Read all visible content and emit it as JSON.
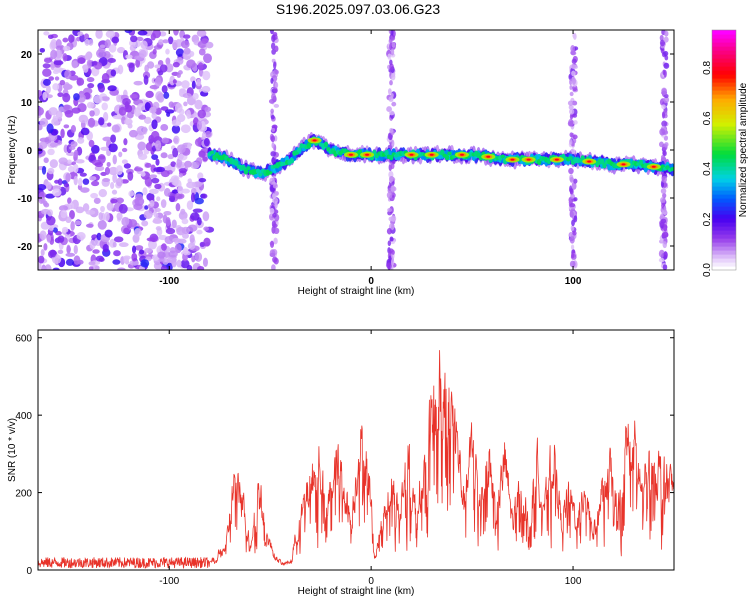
{
  "title": "S196.2025.097.03.06.G23",
  "chart_data": [
    {
      "type": "heatmap",
      "xlabel": "Height of straight line (km)",
      "ylabel": "Frequency (Hz)",
      "xlim": [
        -165,
        150
      ],
      "ylim": [
        -25,
        25
      ],
      "x_ticks": [
        -100,
        0,
        100
      ],
      "y_ticks": [
        -20,
        -10,
        0,
        10,
        20
      ],
      "colorbar": {
        "label": "Normalized spectral amplitude",
        "ticks": [
          0.0,
          0.2,
          0.4,
          0.6,
          0.8
        ],
        "range": [
          0,
          0.95
        ]
      },
      "ridge": {
        "x": [
          -78,
          -70,
          -62,
          -55,
          -48,
          -40,
          -33,
          -28,
          -20,
          -10,
          0,
          10,
          20,
          30,
          40,
          50,
          60,
          70,
          80,
          90,
          100,
          110,
          120,
          130,
          140,
          150
        ],
        "y": [
          -1,
          -2,
          -4,
          -5,
          -4,
          -2,
          1,
          2,
          0,
          -1,
          -1,
          -1,
          -1,
          -1,
          -1,
          -1,
          -1.5,
          -2,
          -2,
          -2,
          -2,
          -2.5,
          -3,
          -3,
          -3.5,
          -4
        ]
      }
    },
    {
      "type": "line",
      "xlabel": "Height of straight line (km)",
      "ylabel": "SNR (10 * v/v)",
      "xlim": [
        -165,
        150
      ],
      "ylim": [
        0,
        620
      ],
      "x_ticks": [
        -100,
        0,
        100
      ],
      "y_ticks": [
        0,
        200,
        400,
        600
      ],
      "color": "#e8332a",
      "envelope": {
        "x": [
          -165,
          -80,
          -72,
          -68,
          -64,
          -60,
          -56,
          -52,
          -48,
          -44,
          -40,
          -35,
          -30,
          -26,
          -22,
          -18,
          -14,
          -10,
          -6,
          -2,
          2,
          6,
          10,
          14,
          18,
          22,
          26,
          30,
          34,
          38,
          42,
          46,
          50,
          54,
          58,
          62,
          66,
          70,
          74,
          78,
          82,
          86,
          90,
          94,
          98,
          102,
          106,
          110,
          114,
          118,
          122,
          126,
          130,
          134,
          138,
          142,
          146,
          150
        ],
        "y": [
          25,
          25,
          80,
          300,
          250,
          80,
          290,
          120,
          50,
          20,
          30,
          180,
          300,
          390,
          200,
          380,
          300,
          160,
          420,
          370,
          40,
          200,
          300,
          180,
          400,
          200,
          330,
          520,
          610,
          610,
          460,
          220,
          430,
          250,
          390,
          190,
          380,
          160,
          290,
          160,
          360,
          220,
          410,
          160,
          260,
          160,
          300,
          120,
          260,
          340,
          180,
          430,
          440,
          260,
          360,
          340,
          300,
          280
        ]
      }
    }
  ]
}
